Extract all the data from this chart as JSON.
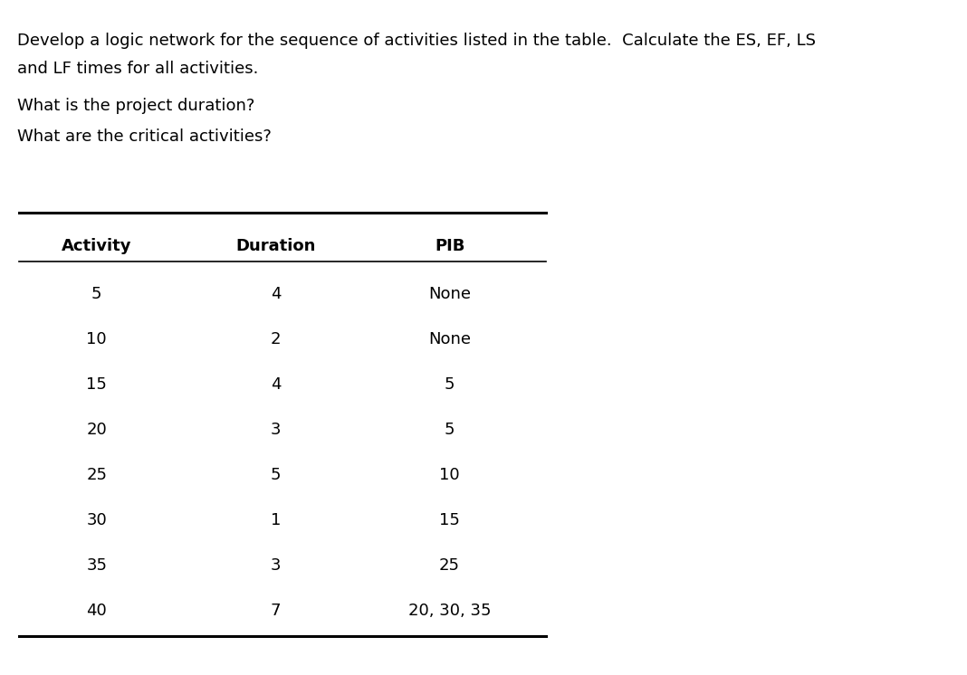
{
  "title_line1": "Develop a logic network for the sequence of activities listed in the table.  Calculate the ES, EF, LS",
  "title_line2": "and LF times for all activities.",
  "question1": "What is the project duration?",
  "question2": "What are the critical activities?",
  "col_headers": [
    "Activity",
    "Duration",
    "PIB"
  ],
  "rows": [
    [
      "5",
      "4",
      "None"
    ],
    [
      "10",
      "2",
      "None"
    ],
    [
      "15",
      "4",
      "5"
    ],
    [
      "20",
      "3",
      "5"
    ],
    [
      "25",
      "5",
      "10"
    ],
    [
      "30",
      "1",
      "15"
    ],
    [
      "35",
      "3",
      "25"
    ],
    [
      "40",
      "7",
      "20, 30, 35"
    ]
  ],
  "text_color": "#000000",
  "bg_color": "#ffffff",
  "fontsize": 13.0,
  "line_color": "#000000"
}
